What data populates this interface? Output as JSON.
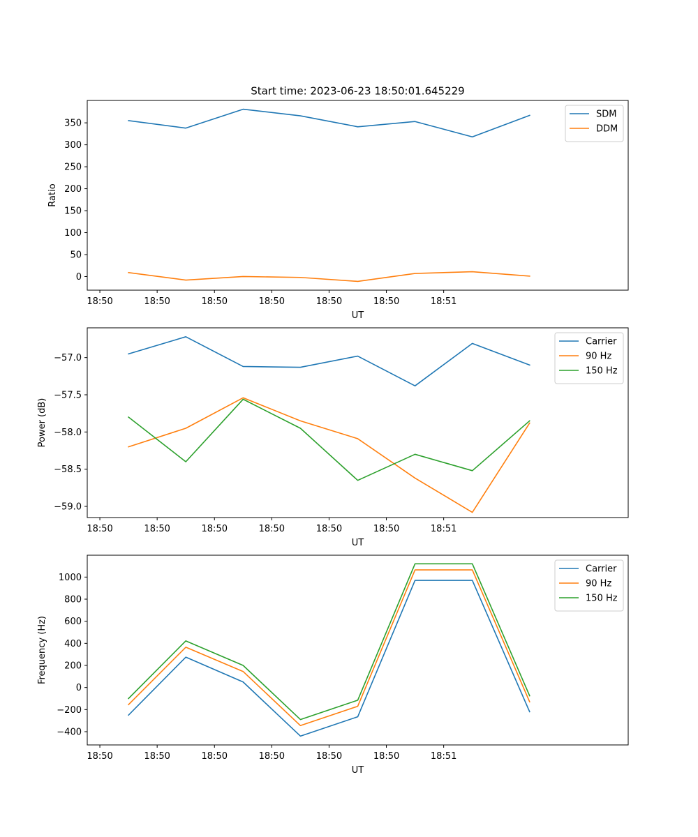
{
  "figure_title": "Start time: 2023-06-23 18:50:01.645229",
  "chart_data": [
    {
      "type": "line",
      "title": "Start time: 2023-06-23 18:50:01.645229",
      "xlabel": "UT",
      "ylabel": "Ratio",
      "x": [
        0,
        1,
        2,
        3,
        4,
        5,
        6,
        7
      ],
      "x_tick_positions": [
        -0.5,
        0.5,
        1.5,
        2.5,
        3.5,
        4.5,
        5.5
      ],
      "x_tick_labels": [
        "18:50",
        "18:50",
        "18:50",
        "18:50",
        "18:50",
        "18:50",
        "18:51"
      ],
      "xlim": [
        -0.72,
        8.72
      ],
      "ylim": [
        -31,
        401
      ],
      "y_ticks": [
        0,
        50,
        100,
        150,
        200,
        250,
        300,
        350
      ],
      "legend_position": "upper-right",
      "series": [
        {
          "name": "SDM",
          "color": "#1f77b4",
          "values": [
            355,
            338,
            381,
            366,
            341,
            353,
            318,
            367
          ]
        },
        {
          "name": "DDM",
          "color": "#ff7f0e",
          "values": [
            9,
            -8,
            0,
            -2,
            -11,
            7,
            11,
            1
          ]
        }
      ]
    },
    {
      "type": "line",
      "xlabel": "UT",
      "ylabel": "Power (dB)",
      "x": [
        0,
        1,
        2,
        3,
        4,
        5,
        6,
        7
      ],
      "x_tick_positions": [
        -0.5,
        0.5,
        1.5,
        2.5,
        3.5,
        4.5,
        5.5
      ],
      "x_tick_labels": [
        "18:50",
        "18:50",
        "18:50",
        "18:50",
        "18:50",
        "18:50",
        "18:51"
      ],
      "xlim": [
        -0.72,
        8.72
      ],
      "ylim": [
        -59.15,
        -56.6
      ],
      "y_ticks": [
        -59.0,
        -58.5,
        -58.0,
        -57.5,
        -57.0
      ],
      "y_tick_labels": [
        "−59.0",
        "−58.5",
        "−58.0",
        "−57.5",
        "−57.0"
      ],
      "legend_position": "upper-right",
      "series": [
        {
          "name": "Carrier",
          "color": "#1f77b4",
          "values": [
            -56.95,
            -56.72,
            -57.12,
            -57.13,
            -56.98,
            -57.38,
            -56.81,
            -57.1
          ]
        },
        {
          "name": "90 Hz",
          "color": "#ff7f0e",
          "values": [
            -58.2,
            -57.95,
            -57.54,
            -57.85,
            -58.09,
            -58.62,
            -59.08,
            -57.88
          ]
        },
        {
          "name": "150 Hz",
          "color": "#2ca02c",
          "values": [
            -57.8,
            -58.4,
            -57.56,
            -57.95,
            -58.65,
            -58.3,
            -58.52,
            -57.85
          ]
        }
      ]
    },
    {
      "type": "line",
      "xlabel": "UT",
      "ylabel": "Frequency (Hz)",
      "x": [
        0,
        1,
        2,
        3,
        4,
        5,
        6,
        7
      ],
      "x_tick_positions": [
        -0.5,
        0.5,
        1.5,
        2.5,
        3.5,
        4.5,
        5.5
      ],
      "x_tick_labels": [
        "18:50",
        "18:50",
        "18:50",
        "18:50",
        "18:50",
        "18:50",
        "18:51"
      ],
      "xlim": [
        -0.72,
        8.72
      ],
      "ylim": [
        -520,
        1198
      ],
      "y_ticks": [
        -400,
        -200,
        0,
        200,
        400,
        600,
        800,
        1000
      ],
      "y_tick_labels": [
        "−400",
        "−200",
        "0",
        "200",
        "400",
        "600",
        "800",
        "1000"
      ],
      "legend_position": "upper-right",
      "series": [
        {
          "name": "Carrier",
          "color": "#1f77b4",
          "values": [
            -250,
            275,
            50,
            -440,
            -265,
            970,
            970,
            -220
          ]
        },
        {
          "name": "90 Hz",
          "color": "#ff7f0e",
          "values": [
            -155,
            365,
            145,
            -345,
            -170,
            1065,
            1065,
            -130
          ]
        },
        {
          "name": "150 Hz",
          "color": "#2ca02c",
          "values": [
            -100,
            422,
            200,
            -290,
            -115,
            1120,
            1120,
            -75
          ]
        }
      ]
    }
  ]
}
